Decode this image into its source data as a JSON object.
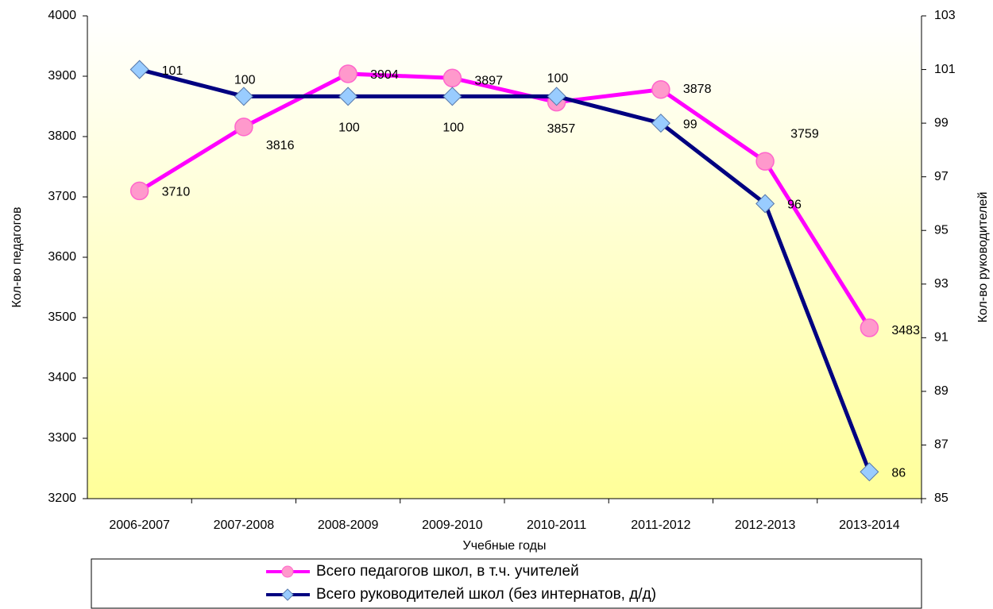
{
  "chart_data": {
    "type": "line",
    "x_label": "Учебные годы",
    "y_label": "Кол-во педагогов",
    "y2_label": "Кол-во руководителей",
    "categories": [
      "2006-2007",
      "2007-2008",
      "2008-2009",
      "2009-2010",
      "2010-2011",
      "2011-2012",
      "2012-2013",
      "2013-2014"
    ],
    "series": [
      {
        "name": "Всего педагогов школ, в т.ч. учителей",
        "color": "#ff00ff",
        "marker_color": "#ff99cc",
        "values": [
          3710,
          3816,
          3904,
          3897,
          3857,
          3878,
          3759,
          3483
        ]
      },
      {
        "name": "Всего руководителей школ (без интернатов, д/д)",
        "color": "#000080",
        "marker_color": "#99ccff",
        "axis": "y2",
        "values": [
          101,
          100,
          100,
          100,
          100,
          99,
          96,
          86
        ]
      }
    ],
    "ylim": [
      3200,
      4000
    ],
    "yticks": [
      3200,
      3300,
      3400,
      3500,
      3600,
      3700,
      3800,
      3900,
      4000
    ],
    "y2lim": [
      85,
      103
    ],
    "y2ticks": [
      85,
      87,
      89,
      91,
      93,
      95,
      97,
      99,
      101,
      103
    ],
    "grid": false
  }
}
